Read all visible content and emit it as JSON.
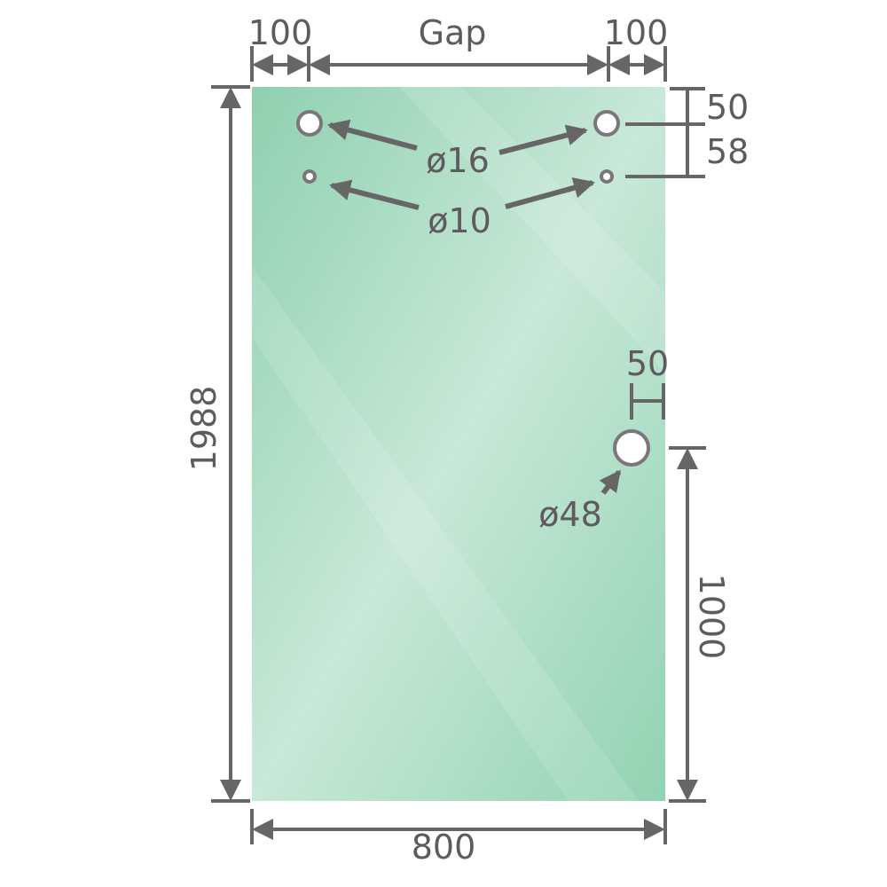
{
  "labels": {
    "left_offset": "100",
    "gap": "Gap",
    "right_offset": "100",
    "height": "1988",
    "width": "800",
    "top_to_upper_holes": "50",
    "upper_to_lower_holes": "58",
    "upper_hole_diameter": "ø16",
    "lower_hole_diameter": "ø10",
    "handle_edge_offset": "50",
    "handle_hole_diameter": "ø48",
    "handle_height": "1000"
  },
  "colors": {
    "glass_edge": "#8fd0b0",
    "glass_center": "#c8e8d8",
    "dimension_lines": "#666666",
    "text": "#5f5a5f"
  }
}
